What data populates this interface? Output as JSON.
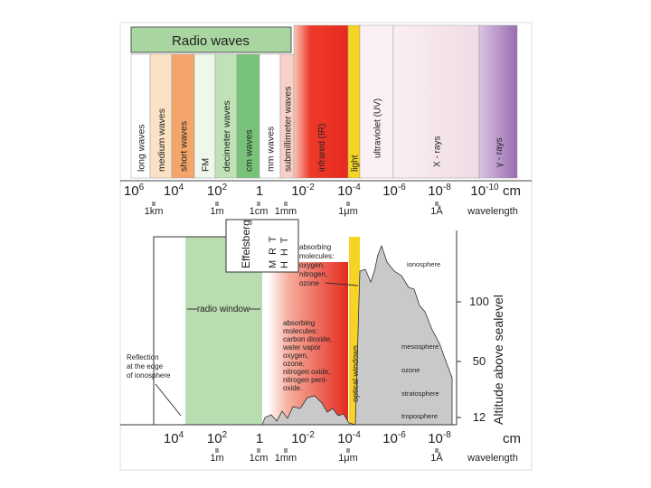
{
  "top": {
    "header": "Radio waves",
    "bands": [
      "long waves",
      "medium waves",
      "short waves",
      "FM",
      "decimeter waves",
      "cm waves",
      "mm waves",
      "submillimeter waves",
      "infrared (IR)",
      "light",
      "ultraviolet (UV)",
      "X - rays",
      "γ - rays"
    ]
  },
  "scale_top": {
    "ticks": [
      {
        "base": "10",
        "exp": "6"
      },
      {
        "base": "10",
        "exp": "4"
      },
      {
        "base": "10",
        "exp": "2"
      },
      "1",
      {
        "base": "10",
        "exp": "-2"
      },
      {
        "base": "10",
        "exp": "-4"
      },
      {
        "base": "10",
        "exp": "-6"
      },
      {
        "base": "10",
        "exp": "-8"
      },
      {
        "base": "10",
        "exp": "-10"
      }
    ],
    "unit": "cm",
    "sub": [
      "1km",
      "1m",
      "1cm",
      "1mm",
      "1μm",
      "1Å"
    ],
    "label": "wavelength"
  },
  "window_chart": {
    "telescopes": [
      "Effelsberg",
      "MRT",
      "HHT"
    ],
    "radio_window": "radio window",
    "reflection": [
      "Reflection",
      "at the edge",
      "of ionosphere"
    ],
    "absorbing_upper": [
      "absorbing",
      "molecules:",
      "oxygen,",
      "nitrogen,",
      "ozone"
    ],
    "absorbing_lower": [
      "absorbing",
      "molecules:",
      "carbon dioxide,",
      "water vapor",
      "oxygen,",
      "ozone,",
      "nitrogen oxide,",
      "nitrogen pent-",
      "oxide."
    ],
    "optical": "optical windows",
    "layers": [
      "ionosphere",
      "mesosphere",
      "ozone",
      "stratosphere",
      "troposphere"
    ],
    "altitude_ticks": [
      "100",
      "50",
      "12"
    ],
    "altitude_label": "Altitude above sealevel"
  },
  "scale_bottom": {
    "ticks": [
      {
        "base": "10",
        "exp": "4"
      },
      {
        "base": "10",
        "exp": "2"
      },
      "1",
      {
        "base": "10",
        "exp": "-2"
      },
      {
        "base": "10",
        "exp": "-4"
      },
      {
        "base": "10",
        "exp": "-6"
      },
      {
        "base": "10",
        "exp": "-8"
      }
    ],
    "unit": "cm",
    "sub": [
      "1m",
      "1cm",
      "1mm",
      "1μm",
      "1Å"
    ],
    "label": "wavelength"
  }
}
